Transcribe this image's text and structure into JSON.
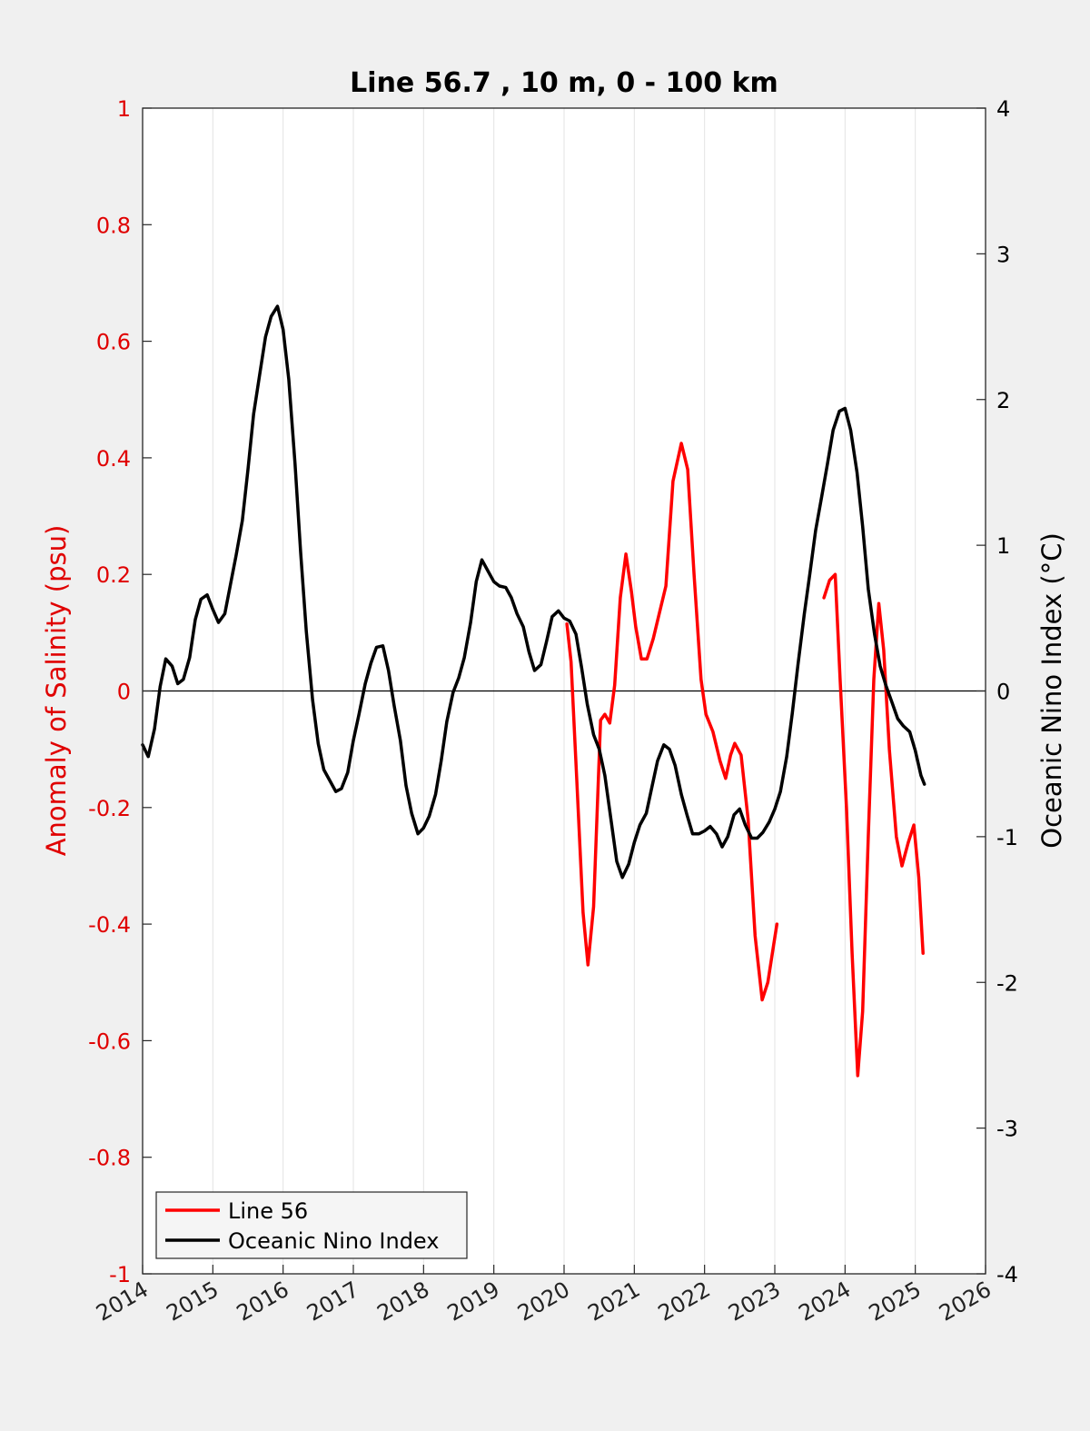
{
  "chart_data": {
    "type": "line",
    "title": "Line 56.7 , 10 m, 0 - 100 km",
    "xlabel": "",
    "ylabel_left": "Anomaly of Salinity (psu)",
    "ylabel_right": "Oceanic Nino Index (°C)",
    "xlim": [
      2014,
      2026
    ],
    "ylim_left": [
      -1,
      1
    ],
    "ylim_right": [
      -4,
      4
    ],
    "x_ticks": [
      "2014",
      "2015",
      "2016",
      "2017",
      "2018",
      "2019",
      "2020",
      "2021",
      "2022",
      "2023",
      "2024",
      "2025",
      "2026"
    ],
    "y_left_ticks": [
      "-1",
      "-0.8",
      "-0.6",
      "-0.4",
      "-0.2",
      "0",
      "0.2",
      "0.4",
      "0.6",
      "0.8",
      "1"
    ],
    "y_right_ticks": [
      "-4",
      "-3",
      "-2",
      "-1",
      "0",
      "1",
      "2",
      "3",
      "4"
    ],
    "grid": "vertical",
    "legend_position": "bottom-left",
    "colors": {
      "line56": "#ff0000",
      "oni": "#000000",
      "left_axis": "#e00000",
      "right_axis": "#000000"
    },
    "series": [
      {
        "name": "Line 56",
        "axis": "left",
        "segments": [
          [
            [
              2020.04,
              0.115
            ],
            [
              2020.1,
              0.05
            ],
            [
              2020.18,
              -0.15
            ],
            [
              2020.27,
              -0.38
            ],
            [
              2020.34,
              -0.47
            ],
            [
              2020.42,
              -0.37
            ],
            [
              2020.52,
              -0.05
            ],
            [
              2020.58,
              -0.04
            ],
            [
              2020.65,
              -0.055
            ],
            [
              2020.72,
              0.01
            ],
            [
              2020.8,
              0.16
            ],
            [
              2020.88,
              0.235
            ],
            [
              2020.96,
              0.17
            ],
            [
              2021.02,
              0.11
            ],
            [
              2021.1,
              0.055
            ],
            [
              2021.18,
              0.055
            ],
            [
              2021.27,
              0.09
            ],
            [
              2021.37,
              0.14
            ],
            [
              2021.45,
              0.18
            ],
            [
              2021.55,
              0.36
            ],
            [
              2021.67,
              0.425
            ],
            [
              2021.76,
              0.38
            ],
            [
              2021.85,
              0.2
            ],
            [
              2021.95,
              0.02
            ],
            [
              2022.02,
              -0.04
            ],
            [
              2022.12,
              -0.07
            ],
            [
              2022.22,
              -0.12
            ],
            [
              2022.3,
              -0.15
            ],
            [
              2022.37,
              -0.11
            ],
            [
              2022.43,
              -0.09
            ],
            [
              2022.52,
              -0.11
            ],
            [
              2022.62,
              -0.22
            ],
            [
              2022.72,
              -0.42
            ],
            [
              2022.82,
              -0.53
            ],
            [
              2022.9,
              -0.5
            ],
            [
              2023.03,
              -0.4
            ]
          ],
          [
            [
              2023.7,
              0.16
            ],
            [
              2023.78,
              0.19
            ],
            [
              2023.86,
              0.2
            ],
            [
              2023.93,
              0.02
            ],
            [
              2024.02,
              -0.2
            ],
            [
              2024.1,
              -0.45
            ],
            [
              2024.18,
              -0.66
            ],
            [
              2024.25,
              -0.55
            ],
            [
              2024.33,
              -0.25
            ],
            [
              2024.41,
              0.02
            ],
            [
              2024.48,
              0.15
            ],
            [
              2024.55,
              0.07
            ],
            [
              2024.63,
              -0.1
            ],
            [
              2024.73,
              -0.25
            ],
            [
              2024.81,
              -0.3
            ],
            [
              2024.9,
              -0.26
            ],
            [
              2024.98,
              -0.23
            ],
            [
              2025.05,
              -0.32
            ],
            [
              2025.11,
              -0.45
            ]
          ]
        ]
      },
      {
        "name": "Oceanic Nino Index",
        "axis": "right",
        "segments": [
          [
            [
              2014.0,
              -0.37
            ],
            [
              2014.08,
              -0.45
            ],
            [
              2014.17,
              -0.26
            ],
            [
              2014.25,
              0.03
            ],
            [
              2014.33,
              0.22
            ],
            [
              2014.42,
              0.17
            ],
            [
              2014.5,
              0.05
            ],
            [
              2014.58,
              0.08
            ],
            [
              2014.67,
              0.23
            ],
            [
              2014.75,
              0.49
            ],
            [
              2014.83,
              0.63
            ],
            [
              2014.92,
              0.66
            ],
            [
              2015.0,
              0.56
            ],
            [
              2015.08,
              0.47
            ],
            [
              2015.17,
              0.53
            ],
            [
              2015.25,
              0.73
            ],
            [
              2015.33,
              0.93
            ],
            [
              2015.42,
              1.17
            ],
            [
              2015.5,
              1.52
            ],
            [
              2015.58,
              1.9
            ],
            [
              2015.67,
              2.18
            ],
            [
              2015.75,
              2.43
            ],
            [
              2015.83,
              2.57
            ],
            [
              2015.92,
              2.64
            ],
            [
              2016.0,
              2.48
            ],
            [
              2016.08,
              2.14
            ],
            [
              2016.17,
              1.56
            ],
            [
              2016.25,
              0.95
            ],
            [
              2016.33,
              0.41
            ],
            [
              2016.42,
              -0.06
            ],
            [
              2016.5,
              -0.36
            ],
            [
              2016.58,
              -0.54
            ],
            [
              2016.67,
              -0.62
            ],
            [
              2016.75,
              -0.69
            ],
            [
              2016.83,
              -0.67
            ],
            [
              2016.92,
              -0.56
            ],
            [
              2017.0,
              -0.34
            ],
            [
              2017.08,
              -0.16
            ],
            [
              2017.17,
              0.05
            ],
            [
              2017.25,
              0.19
            ],
            [
              2017.33,
              0.3
            ],
            [
              2017.42,
              0.31
            ],
            [
              2017.5,
              0.14
            ],
            [
              2017.58,
              -0.1
            ],
            [
              2017.67,
              -0.34
            ],
            [
              2017.75,
              -0.65
            ],
            [
              2017.83,
              -0.84
            ],
            [
              2017.92,
              -0.98
            ],
            [
              2018.0,
              -0.94
            ],
            [
              2018.08,
              -0.86
            ],
            [
              2018.17,
              -0.71
            ],
            [
              2018.25,
              -0.48
            ],
            [
              2018.33,
              -0.21
            ],
            [
              2018.42,
              -0.01
            ],
            [
              2018.5,
              0.09
            ],
            [
              2018.58,
              0.23
            ],
            [
              2018.67,
              0.47
            ],
            [
              2018.75,
              0.75
            ],
            [
              2018.83,
              0.9
            ],
            [
              2018.92,
              0.82
            ],
            [
              2019.0,
              0.75
            ],
            [
              2019.08,
              0.72
            ],
            [
              2019.17,
              0.71
            ],
            [
              2019.25,
              0.64
            ],
            [
              2019.33,
              0.53
            ],
            [
              2019.42,
              0.44
            ],
            [
              2019.5,
              0.27
            ],
            [
              2019.58,
              0.14
            ],
            [
              2019.67,
              0.18
            ],
            [
              2019.75,
              0.34
            ],
            [
              2019.83,
              0.51
            ],
            [
              2019.92,
              0.55
            ],
            [
              2020.0,
              0.5
            ],
            [
              2020.08,
              0.48
            ],
            [
              2020.17,
              0.39
            ],
            [
              2020.25,
              0.16
            ],
            [
              2020.33,
              -0.09
            ],
            [
              2020.42,
              -0.3
            ],
            [
              2020.5,
              -0.4
            ],
            [
              2020.58,
              -0.58
            ],
            [
              2020.67,
              -0.89
            ],
            [
              2020.75,
              -1.17
            ],
            [
              2020.83,
              -1.28
            ],
            [
              2020.92,
              -1.19
            ],
            [
              2021.0,
              -1.04
            ],
            [
              2021.08,
              -0.92
            ],
            [
              2021.17,
              -0.84
            ],
            [
              2021.25,
              -0.66
            ],
            [
              2021.33,
              -0.48
            ],
            [
              2021.42,
              -0.37
            ],
            [
              2021.5,
              -0.4
            ],
            [
              2021.58,
              -0.51
            ],
            [
              2021.67,
              -0.71
            ],
            [
              2021.75,
              -0.85
            ],
            [
              2021.83,
              -0.98
            ],
            [
              2021.92,
              -0.98
            ],
            [
              2022.0,
              -0.96
            ],
            [
              2022.08,
              -0.93
            ],
            [
              2022.17,
              -0.98
            ],
            [
              2022.25,
              -1.07
            ],
            [
              2022.33,
              -1.0
            ],
            [
              2022.42,
              -0.85
            ],
            [
              2022.5,
              -0.81
            ],
            [
              2022.58,
              -0.92
            ],
            [
              2022.67,
              -1.01
            ],
            [
              2022.75,
              -1.01
            ],
            [
              2022.83,
              -0.97
            ],
            [
              2022.92,
              -0.9
            ],
            [
              2023.0,
              -0.81
            ],
            [
              2023.08,
              -0.69
            ],
            [
              2023.17,
              -0.45
            ],
            [
              2023.25,
              -0.15
            ],
            [
              2023.33,
              0.18
            ],
            [
              2023.42,
              0.53
            ],
            [
              2023.5,
              0.81
            ],
            [
              2023.58,
              1.1
            ],
            [
              2023.67,
              1.34
            ],
            [
              2023.75,
              1.56
            ],
            [
              2023.83,
              1.79
            ],
            [
              2023.92,
              1.92
            ],
            [
              2024.0,
              1.94
            ],
            [
              2024.08,
              1.79
            ],
            [
              2024.17,
              1.5
            ],
            [
              2024.25,
              1.13
            ],
            [
              2024.33,
              0.7
            ],
            [
              2024.42,
              0.39
            ],
            [
              2024.5,
              0.17
            ],
            [
              2024.58,
              0.04
            ],
            [
              2024.67,
              -0.08
            ],
            [
              2024.75,
              -0.19
            ],
            [
              2024.83,
              -0.24
            ],
            [
              2024.92,
              -0.28
            ],
            [
              2025.0,
              -0.41
            ],
            [
              2025.08,
              -0.58
            ],
            [
              2025.13,
              -0.64
            ]
          ]
        ]
      }
    ]
  }
}
